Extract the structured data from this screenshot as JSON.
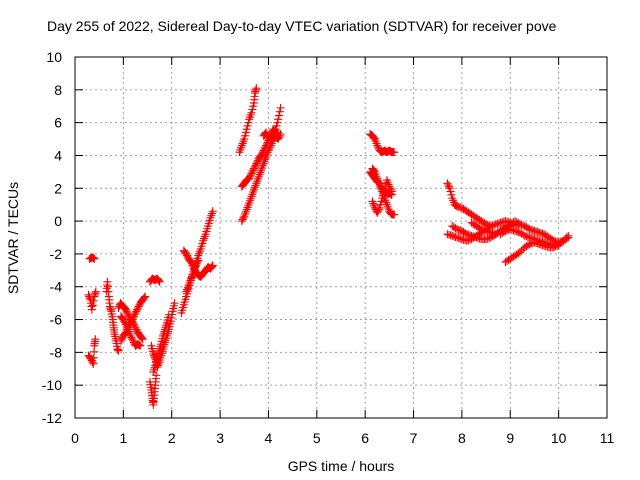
{
  "chart_data": {
    "type": "scatter",
    "title": "Day 255 of 2022, Sidereal Day-to-day VTEC variation (SDTVAR) for receiver pove",
    "xlabel": "GPS time / hours",
    "ylabel": "SDTVAR / TECUs",
    "xlim": [
      0,
      11
    ],
    "ylim": [
      -12,
      10
    ],
    "xticks": [
      "0",
      "1",
      "2",
      "3",
      "4",
      "5",
      "6",
      "7",
      "8",
      "9",
      "10",
      "11"
    ],
    "yticks": [
      "-12",
      "-10",
      "-8",
      "-6",
      "-4",
      "-2",
      "0",
      "2",
      "4",
      "6",
      "8",
      "10"
    ],
    "grid": true,
    "marker": "plus",
    "color": "#ff0000",
    "segments": [
      [
        [
          0.3,
          -2.3
        ],
        [
          0.36,
          -2.2
        ],
        [
          0.4,
          -2.3
        ]
      ],
      [
        [
          0.28,
          -4.5
        ],
        [
          0.32,
          -4.8
        ],
        [
          0.35,
          -5.4
        ],
        [
          0.4,
          -4.6
        ],
        [
          0.43,
          -4.3
        ]
      ],
      [
        [
          0.28,
          -8.2
        ],
        [
          0.33,
          -8.4
        ],
        [
          0.38,
          -8.7
        ],
        [
          0.4,
          -7.6
        ],
        [
          0.42,
          -7.2
        ]
      ],
      [
        [
          0.65,
          -4.3
        ],
        [
          0.67,
          -3.7
        ],
        [
          0.7,
          -4.6
        ],
        [
          0.72,
          -5.2
        ],
        [
          0.75,
          -5.5
        ],
        [
          0.78,
          -6.0
        ],
        [
          0.8,
          -6.5
        ],
        [
          0.82,
          -6.9
        ],
        [
          0.85,
          -7.3
        ],
        [
          0.88,
          -7.8
        ],
        [
          0.9,
          -7.9
        ]
      ],
      [
        [
          0.9,
          -5.3
        ],
        [
          0.94,
          -5.0
        ],
        [
          1.0,
          -5.2
        ],
        [
          1.05,
          -5.4
        ],
        [
          1.1,
          -5.7
        ],
        [
          1.15,
          -6.0
        ],
        [
          1.2,
          -6.2
        ],
        [
          1.25,
          -6.5
        ],
        [
          1.3,
          -6.8
        ],
        [
          1.35,
          -7.0
        ],
        [
          1.4,
          -7.2
        ]
      ],
      [
        [
          0.95,
          -7.3
        ],
        [
          1.0,
          -7.0
        ],
        [
          1.05,
          -6.8
        ],
        [
          1.1,
          -6.5
        ],
        [
          1.15,
          -6.2
        ],
        [
          1.2,
          -5.9
        ],
        [
          1.25,
          -5.6
        ],
        [
          1.3,
          -5.3
        ],
        [
          1.35,
          -5.0
        ],
        [
          1.4,
          -4.8
        ],
        [
          1.45,
          -4.6
        ]
      ],
      [
        [
          0.95,
          -5.8
        ],
        [
          1.0,
          -6.0
        ],
        [
          1.05,
          -6.3
        ],
        [
          1.1,
          -6.6
        ],
        [
          1.15,
          -7.0
        ],
        [
          1.2,
          -7.3
        ],
        [
          1.25,
          -7.6
        ],
        [
          1.3,
          -7.5
        ],
        [
          1.35,
          -7.6
        ]
      ],
      [
        [
          1.55,
          -3.7
        ],
        [
          1.6,
          -3.5
        ],
        [
          1.65,
          -3.6
        ],
        [
          1.7,
          -3.5
        ],
        [
          1.75,
          -3.7
        ]
      ],
      [
        [
          1.55,
          -9.8
        ],
        [
          1.58,
          -10.3
        ],
        [
          1.6,
          -10.8
        ],
        [
          1.62,
          -11.2
        ],
        [
          1.64,
          -10.6
        ],
        [
          1.66,
          -10.0
        ],
        [
          1.68,
          -9.4
        ]
      ],
      [
        [
          1.58,
          -7.6
        ],
        [
          1.62,
          -8.1
        ],
        [
          1.66,
          -8.4
        ],
        [
          1.7,
          -8.9
        ],
        [
          1.74,
          -8.6
        ],
        [
          1.78,
          -8.2
        ],
        [
          1.82,
          -7.8
        ],
        [
          1.86,
          -7.4
        ],
        [
          1.9,
          -7.0
        ],
        [
          1.94,
          -6.6
        ],
        [
          1.98,
          -6.1
        ],
        [
          2.02,
          -5.5
        ],
        [
          2.06,
          -5.0
        ]
      ],
      [
        [
          1.62,
          -9.2
        ],
        [
          1.66,
          -8.8
        ],
        [
          1.7,
          -8.3
        ],
        [
          1.74,
          -7.9
        ],
        [
          1.78,
          -7.5
        ],
        [
          1.82,
          -7.0
        ],
        [
          1.86,
          -6.6
        ],
        [
          1.9,
          -6.2
        ],
        [
          1.94,
          -5.7
        ]
      ],
      [
        [
          2.25,
          -1.8
        ],
        [
          2.3,
          -2.0
        ],
        [
          2.35,
          -2.3
        ],
        [
          2.4,
          -2.5
        ],
        [
          2.45,
          -2.8
        ],
        [
          2.5,
          -3.1
        ],
        [
          2.55,
          -3.3
        ],
        [
          2.6,
          -3.4
        ],
        [
          2.65,
          -3.2
        ],
        [
          2.7,
          -3.0
        ],
        [
          2.75,
          -2.8
        ],
        [
          2.8,
          -2.9
        ],
        [
          2.85,
          -2.7
        ]
      ],
      [
        [
          2.2,
          -5.6
        ],
        [
          2.25,
          -5.1
        ],
        [
          2.3,
          -4.6
        ],
        [
          2.35,
          -4.1
        ],
        [
          2.4,
          -3.6
        ],
        [
          2.45,
          -3.1
        ],
        [
          2.5,
          -2.6
        ],
        [
          2.55,
          -2.1
        ],
        [
          2.6,
          -1.7
        ],
        [
          2.65,
          -1.2
        ],
        [
          2.7,
          -0.8
        ],
        [
          2.75,
          -0.3
        ],
        [
          2.8,
          0.2
        ],
        [
          2.85,
          0.6
        ]
      ],
      [
        [
          2.3,
          -4.3
        ],
        [
          2.35,
          -3.9
        ],
        [
          2.4,
          -3.5
        ],
        [
          2.45,
          -3.1
        ],
        [
          2.5,
          -2.7
        ],
        [
          2.55,
          -2.4
        ]
      ],
      [
        [
          3.4,
          4.2
        ],
        [
          3.45,
          4.6
        ],
        [
          3.5,
          5.0
        ],
        [
          3.55,
          5.6
        ],
        [
          3.6,
          6.2
        ],
        [
          3.65,
          6.6
        ],
        [
          3.7,
          7.2
        ],
        [
          3.72,
          7.8
        ],
        [
          3.75,
          8.1
        ]
      ],
      [
        [
          3.45,
          2.1
        ],
        [
          3.5,
          2.3
        ],
        [
          3.55,
          2.5
        ],
        [
          3.6,
          2.6
        ],
        [
          3.65,
          2.9
        ],
        [
          3.7,
          3.2
        ],
        [
          3.75,
          3.5
        ],
        [
          3.8,
          3.8
        ],
        [
          3.85,
          4.0
        ],
        [
          3.9,
          4.3
        ],
        [
          3.95,
          4.6
        ],
        [
          4.0,
          4.9
        ],
        [
          4.05,
          5.2
        ],
        [
          4.1,
          5.4
        ],
        [
          4.15,
          5.6
        ],
        [
          4.2,
          6.2
        ],
        [
          4.25,
          6.9
        ]
      ],
      [
        [
          3.45,
          0.0
        ],
        [
          3.5,
          0.3
        ],
        [
          3.55,
          0.7
        ],
        [
          3.6,
          1.1
        ],
        [
          3.65,
          1.5
        ],
        [
          3.7,
          1.9
        ],
        [
          3.75,
          2.3
        ],
        [
          3.8,
          2.7
        ],
        [
          3.85,
          3.1
        ],
        [
          3.9,
          3.5
        ],
        [
          3.95,
          3.9
        ],
        [
          4.0,
          4.3
        ],
        [
          4.05,
          4.6
        ],
        [
          4.1,
          5.0
        ],
        [
          4.15,
          5.2
        ],
        [
          4.2,
          5.0
        ],
        [
          4.25,
          5.3
        ]
      ],
      [
        [
          3.9,
          5.2
        ],
        [
          3.95,
          5.4
        ],
        [
          4.0,
          5.0
        ],
        [
          4.05,
          5.3
        ],
        [
          4.1,
          5.6
        ],
        [
          4.15,
          5.1
        ],
        [
          4.2,
          5.4
        ]
      ],
      [
        [
          6.1,
          5.3
        ],
        [
          6.15,
          5.2
        ],
        [
          6.2,
          5.0
        ],
        [
          6.25,
          4.6
        ],
        [
          6.3,
          4.3
        ],
        [
          6.35,
          4.2
        ],
        [
          6.4,
          4.3
        ],
        [
          6.45,
          4.2
        ],
        [
          6.5,
          4.3
        ],
        [
          6.55,
          4.2
        ],
        [
          6.6,
          4.2
        ]
      ],
      [
        [
          6.1,
          3.0
        ],
        [
          6.15,
          2.8
        ],
        [
          6.2,
          2.6
        ],
        [
          6.25,
          2.4
        ],
        [
          6.3,
          2.3
        ],
        [
          6.35,
          2.0
        ],
        [
          6.4,
          1.8
        ],
        [
          6.45,
          1.7
        ],
        [
          6.5,
          1.7
        ],
        [
          6.55,
          1.6
        ]
      ],
      [
        [
          6.15,
          1.2
        ],
        [
          6.2,
          0.8
        ],
        [
          6.25,
          0.5
        ],
        [
          6.3,
          0.8
        ],
        [
          6.35,
          1.4
        ],
        [
          6.4,
          1.9
        ],
        [
          6.45,
          2.5
        ],
        [
          6.5,
          2.1
        ],
        [
          6.55,
          1.8
        ]
      ],
      [
        [
          6.15,
          3.2
        ],
        [
          6.2,
          3.0
        ],
        [
          6.25,
          2.6
        ],
        [
          6.3,
          2.2
        ],
        [
          6.35,
          1.8
        ],
        [
          6.4,
          1.4
        ],
        [
          6.45,
          1.0
        ],
        [
          6.5,
          0.6
        ],
        [
          6.55,
          0.4
        ],
        [
          6.6,
          0.4
        ]
      ],
      [
        [
          7.7,
          2.3
        ],
        [
          7.75,
          2.0
        ],
        [
          7.8,
          1.4
        ],
        [
          7.85,
          1.0
        ],
        [
          7.9,
          0.9
        ],
        [
          8.0,
          0.8
        ],
        [
          8.1,
          0.6
        ],
        [
          8.2,
          0.4
        ],
        [
          8.3,
          0.2
        ],
        [
          8.4,
          0.0
        ],
        [
          8.5,
          -0.2
        ],
        [
          8.6,
          -0.3
        ]
      ],
      [
        [
          7.7,
          -0.8
        ],
        [
          7.8,
          -0.9
        ],
        [
          7.9,
          -1.0
        ],
        [
          8.0,
          -1.1
        ],
        [
          8.1,
          -1.2
        ],
        [
          8.2,
          -1.1
        ],
        [
          8.3,
          -0.9
        ],
        [
          8.4,
          -0.7
        ],
        [
          8.5,
          -0.5
        ],
        [
          8.6,
          -0.3
        ],
        [
          8.7,
          -0.2
        ],
        [
          8.8,
          -0.1
        ],
        [
          8.9,
          0.0
        ],
        [
          9.0,
          -0.1
        ]
      ],
      [
        [
          7.8,
          -0.3
        ],
        [
          7.9,
          -0.5
        ],
        [
          8.0,
          -0.6
        ],
        [
          8.1,
          -0.8
        ],
        [
          8.2,
          -0.9
        ],
        [
          8.3,
          -1.0
        ],
        [
          8.4,
          -1.1
        ],
        [
          8.5,
          -1.1
        ],
        [
          8.6,
          -1.0
        ],
        [
          8.7,
          -0.8
        ],
        [
          8.8,
          -0.6
        ],
        [
          8.9,
          -0.4
        ],
        [
          9.0,
          -0.2
        ],
        [
          9.1,
          0.0
        ],
        [
          9.2,
          -0.2
        ]
      ],
      [
        [
          8.2,
          -0.1
        ],
        [
          8.3,
          -0.3
        ],
        [
          8.4,
          -0.5
        ],
        [
          8.5,
          -0.6
        ],
        [
          8.6,
          -0.7
        ],
        [
          8.7,
          -0.8
        ],
        [
          8.8,
          -0.6
        ],
        [
          8.9,
          -0.4
        ],
        [
          9.0,
          -0.3
        ],
        [
          9.1,
          -0.2
        ],
        [
          9.2,
          -0.2
        ],
        [
          9.3,
          -0.3
        ],
        [
          9.4,
          -0.5
        ],
        [
          9.5,
          -0.6
        ],
        [
          9.6,
          -0.7
        ],
        [
          9.7,
          -0.8
        ],
        [
          9.8,
          -1.0
        ],
        [
          9.9,
          -1.2
        ],
        [
          10.0,
          -1.3
        ],
        [
          10.1,
          -1.2
        ],
        [
          10.2,
          -0.9
        ]
      ],
      [
        [
          8.9,
          -2.5
        ],
        [
          9.0,
          -2.3
        ],
        [
          9.1,
          -2.1
        ],
        [
          9.2,
          -1.9
        ],
        [
          9.3,
          -1.6
        ],
        [
          9.4,
          -1.4
        ],
        [
          9.5,
          -1.3
        ],
        [
          9.6,
          -1.4
        ],
        [
          9.7,
          -1.5
        ],
        [
          9.8,
          -1.6
        ],
        [
          9.9,
          -1.6
        ],
        [
          10.0,
          -1.4
        ],
        [
          10.1,
          -1.2
        ],
        [
          10.2,
          -1.0
        ]
      ],
      [
        [
          8.8,
          -0.8
        ],
        [
          8.9,
          -0.6
        ],
        [
          9.0,
          -0.5
        ],
        [
          9.1,
          -0.6
        ],
        [
          9.2,
          -0.7
        ],
        [
          9.3,
          -0.9
        ],
        [
          9.4,
          -1.0
        ],
        [
          9.5,
          -1.1
        ],
        [
          9.6,
          -1.2
        ],
        [
          9.7,
          -1.3
        ],
        [
          9.8,
          -1.4
        ],
        [
          9.9,
          -1.5
        ],
        [
          10.0,
          -1.5
        ]
      ]
    ]
  }
}
